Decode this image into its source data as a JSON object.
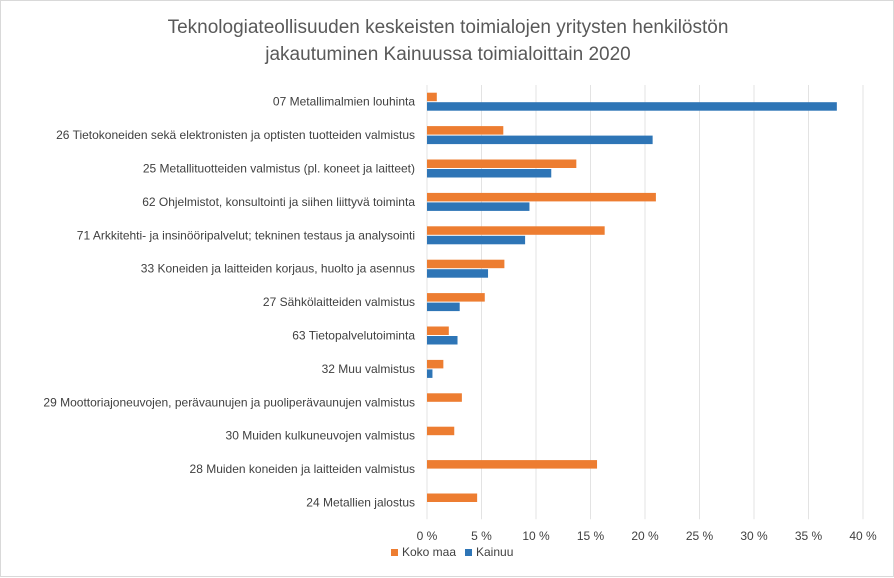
{
  "chart_data": {
    "type": "bar",
    "orientation": "horizontal",
    "title": [
      "Teknologiateollisuuden keskeisten toimialojen yritysten henkilöstön",
      "jakautuminen Kainuussa toimialoittain 2020"
    ],
    "categories": [
      "07 Metallimalmien louhinta",
      "26 Tietokoneiden sekä elektronisten ja optisten tuotteiden valmistus",
      "25 Metallituotteiden valmistus (pl. koneet ja laitteet)",
      "62 Ohjelmistot, konsultointi ja siihen liittyvä toiminta",
      "71 Arkkitehti- ja insinööripalvelut; tekninen testaus ja analysointi",
      "33 Koneiden ja laitteiden korjaus, huolto ja asennus",
      "27 Sähkölaitteiden valmistus",
      "63 Tietopalvelutoiminta",
      "32 Muu valmistus",
      "29 Moottoriajoneuvojen, perävaunujen ja puoliperävaunujen valmistus",
      "30 Muiden kulkuneuvojen valmistus",
      "28 Muiden koneiden ja laitteiden valmistus",
      "24 Metallien jalostus"
    ],
    "series": [
      {
        "name": "Koko maa",
        "color": "#ed7d31",
        "values": [
          0.9,
          7.0,
          13.7,
          21.0,
          16.3,
          7.1,
          5.3,
          2.0,
          1.5,
          3.2,
          2.5,
          15.6,
          4.6
        ]
      },
      {
        "name": "Kainuu",
        "color": "#2e75b6",
        "values": [
          37.6,
          20.7,
          11.4,
          9.4,
          9.0,
          5.6,
          3.0,
          2.8,
          0.5,
          0.0,
          0.0,
          0.0,
          0.0
        ]
      }
    ],
    "xlim": [
      0,
      40
    ],
    "xticks": [
      0,
      5,
      10,
      15,
      20,
      25,
      30,
      35,
      40
    ],
    "xtick_labels": [
      "0 %",
      "5 %",
      "10 %",
      "15 %",
      "20 %",
      "25 %",
      "30 %",
      "35 %",
      "40 %"
    ],
    "grid": true,
    "legend_position": "bottom"
  }
}
